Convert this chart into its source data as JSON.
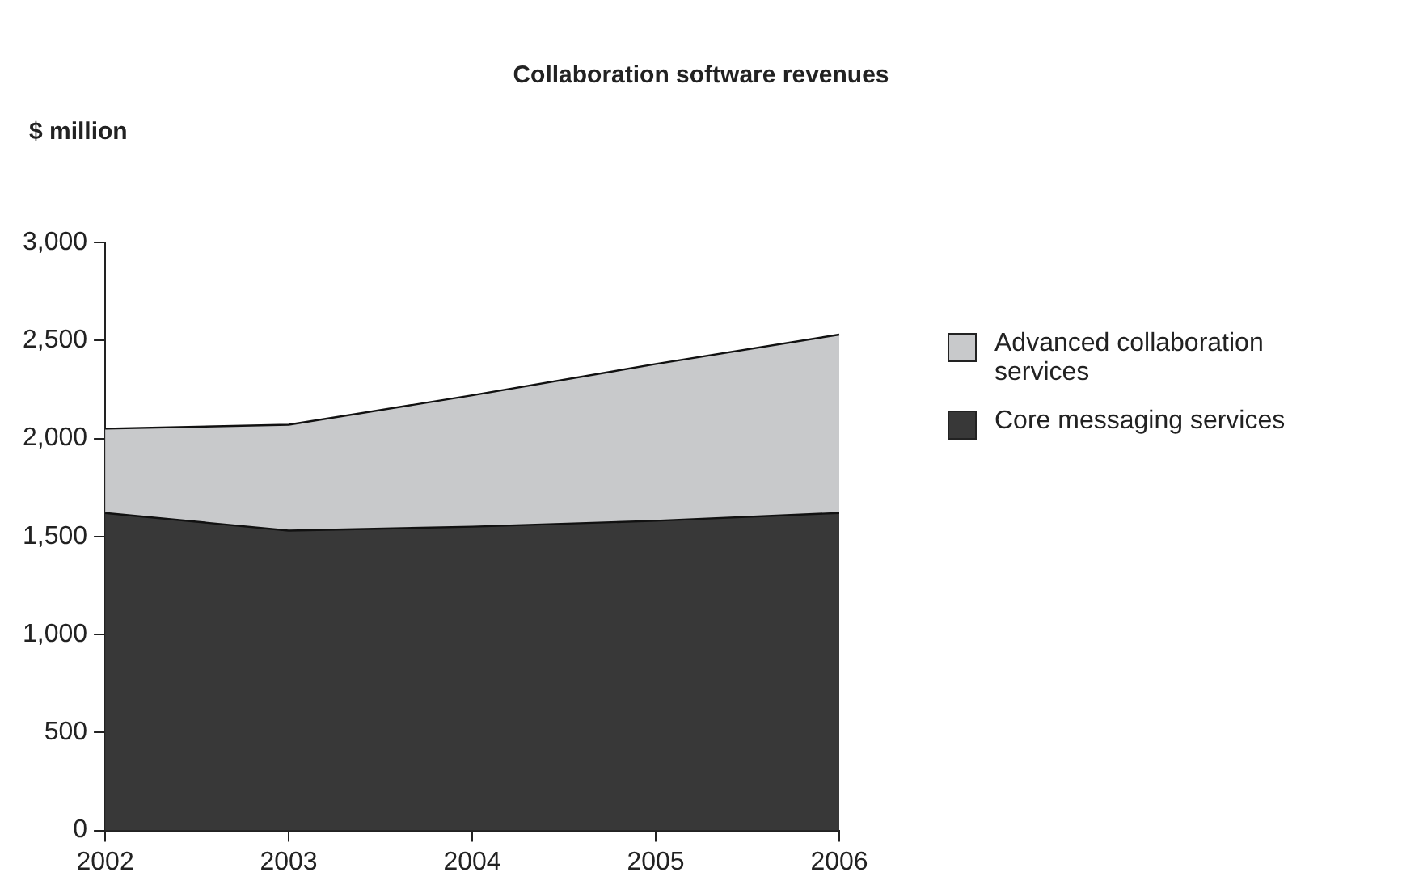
{
  "chart_data": {
    "type": "area",
    "title": "Collaboration software revenues",
    "ylabel": "$ million",
    "categories": [
      "2002",
      "2003",
      "2004",
      "2005",
      "2006"
    ],
    "series": [
      {
        "name": "Core messaging services",
        "color": "#383838",
        "values": [
          1620,
          1530,
          1550,
          1580,
          1620
        ]
      },
      {
        "name": "Advanced collaboration services",
        "color": "#c8c9cb",
        "values": [
          430,
          540,
          670,
          800,
          910
        ]
      }
    ],
    "stacked": true,
    "ylim": [
      0,
      3000
    ],
    "yticks": [
      {
        "value": 0,
        "label": "0"
      },
      {
        "value": 500,
        "label": "500"
      },
      {
        "value": 1000,
        "label": "1,000"
      },
      {
        "value": 1500,
        "label": "1,500"
      },
      {
        "value": 2000,
        "label": "2,000"
      },
      {
        "value": 2500,
        "label": "2,500"
      },
      {
        "value": 3000,
        "label": "3,000"
      }
    ],
    "grid": false,
    "legend": "right",
    "marker": "none"
  }
}
